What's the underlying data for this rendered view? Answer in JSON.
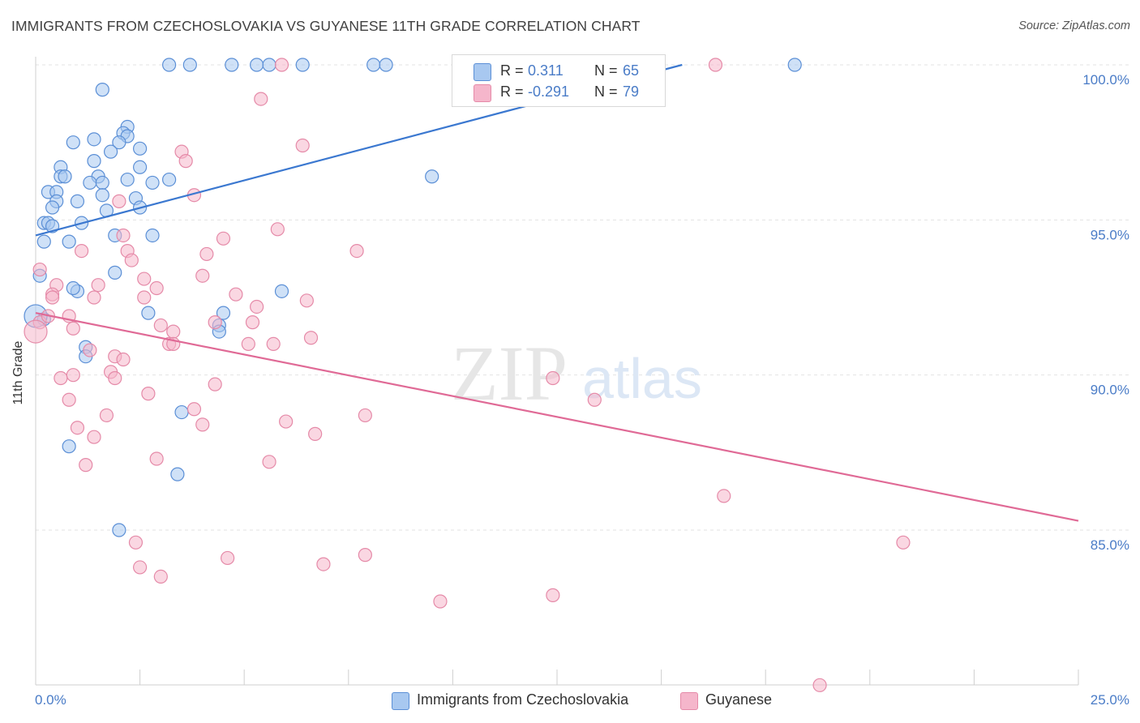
{
  "title": "IMMIGRANTS FROM CZECHOSLOVAKIA VS GUYANESE 11TH GRADE CORRELATION CHART",
  "source": "Source: ZipAtlas.com",
  "watermark": {
    "zip": "ZIP",
    "atlas": "atlas"
  },
  "legend": {
    "rows": [
      {
        "r_label": "R =",
        "r_value": "0.311",
        "n_label": "N =",
        "n_value": "65"
      },
      {
        "r_label": "R =",
        "r_value": "-0.291",
        "n_label": "N =",
        "n_value": "79"
      }
    ]
  },
  "bottom_legend": [
    "Immigrants from Czechoslovakia",
    "Guyanese"
  ],
  "colors": {
    "blue_fill": "#a8c8f0",
    "blue_stroke": "#5b8fd6",
    "blue_line": "#3b78d0",
    "pink_fill": "#f5b6cb",
    "pink_stroke": "#e58aa8",
    "pink_line": "#e06a96",
    "axis_label": "#4a7cc7",
    "grid": "#e3e3e3"
  },
  "chart_data": {
    "type": "scatter",
    "title": "IMMIGRANTS FROM CZECHOSLOVAKIA VS GUYANESE 11TH GRADE CORRELATION CHART",
    "xlabel": "",
    "ylabel": "11th Grade",
    "xlim": [
      0,
      25
    ],
    "ylim": [
      80.0,
      100.8
    ],
    "x_tick_labels": [
      "0.0%",
      "25.0%"
    ],
    "y_ticks": [
      85,
      90,
      95,
      100
    ],
    "y_tick_labels": [
      "85.0%",
      "90.0%",
      "95.0%",
      "100.0%"
    ],
    "grid": true,
    "series": [
      {
        "name": "Immigrants from Czechoslovakia",
        "color": "#a8c8f0",
        "trend": {
          "x": [
            0.0,
            15.5
          ],
          "y": [
            94.5,
            100.0
          ]
        },
        "points": [
          [
            3.2,
            100.0
          ],
          [
            3.7,
            100.0
          ],
          [
            4.7,
            100.0
          ],
          [
            5.3,
            100.0
          ],
          [
            5.6,
            100.0
          ],
          [
            6.4,
            100.0
          ],
          [
            8.1,
            100.0
          ],
          [
            8.4,
            100.0
          ],
          [
            18.2,
            100.0
          ],
          [
            1.6,
            99.2
          ],
          [
            2.2,
            98.0
          ],
          [
            2.1,
            97.8
          ],
          [
            2.2,
            97.7
          ],
          [
            1.4,
            97.6
          ],
          [
            0.9,
            97.5
          ],
          [
            2.0,
            97.5
          ],
          [
            2.5,
            97.3
          ],
          [
            1.8,
            97.2
          ],
          [
            1.4,
            96.9
          ],
          [
            2.5,
            96.7
          ],
          [
            0.6,
            96.7
          ],
          [
            0.6,
            96.4
          ],
          [
            0.7,
            96.4
          ],
          [
            1.5,
            96.4
          ],
          [
            2.2,
            96.3
          ],
          [
            3.2,
            96.3
          ],
          [
            1.3,
            96.2
          ],
          [
            1.6,
            96.2
          ],
          [
            2.8,
            96.2
          ],
          [
            0.3,
            95.9
          ],
          [
            0.5,
            95.9
          ],
          [
            0.5,
            95.6
          ],
          [
            1.0,
            95.6
          ],
          [
            1.6,
            95.8
          ],
          [
            2.4,
            95.7
          ],
          [
            0.4,
            95.4
          ],
          [
            1.7,
            95.3
          ],
          [
            2.5,
            95.4
          ],
          [
            0.2,
            94.9
          ],
          [
            0.3,
            94.9
          ],
          [
            1.1,
            94.9
          ],
          [
            0.4,
            94.8
          ],
          [
            1.9,
            94.5
          ],
          [
            2.8,
            94.5
          ],
          [
            0.2,
            94.3
          ],
          [
            0.8,
            94.3
          ],
          [
            9.5,
            96.4
          ],
          [
            0.1,
            93.2
          ],
          [
            1.9,
            93.3
          ],
          [
            1.0,
            92.7
          ],
          [
            5.9,
            92.7
          ],
          [
            0.9,
            92.8
          ],
          [
            2.7,
            92.0
          ],
          [
            4.5,
            92.0
          ],
          [
            4.4,
            91.6
          ],
          [
            0.2,
            91.8
          ],
          [
            4.4,
            91.4
          ],
          [
            1.2,
            90.9
          ],
          [
            1.2,
            90.6
          ],
          [
            3.5,
            88.8
          ],
          [
            0.8,
            87.7
          ],
          [
            3.4,
            86.8
          ],
          [
            2.0,
            85.0
          ],
          [
            0.0,
            91.9
          ]
        ]
      },
      {
        "name": "Guyanese",
        "color": "#f5b6cb",
        "trend": {
          "x": [
            0.0,
            25.0
          ],
          "y": [
            92.0,
            85.3
          ]
        },
        "points": [
          [
            5.9,
            100.0
          ],
          [
            16.3,
            100.0
          ],
          [
            5.4,
            98.9
          ],
          [
            6.4,
            97.4
          ],
          [
            3.5,
            97.2
          ],
          [
            3.6,
            96.9
          ],
          [
            3.8,
            95.8
          ],
          [
            2.0,
            95.6
          ],
          [
            5.8,
            94.7
          ],
          [
            2.1,
            94.5
          ],
          [
            4.5,
            94.4
          ],
          [
            1.1,
            94.0
          ],
          [
            2.2,
            94.0
          ],
          [
            4.1,
            93.9
          ],
          [
            7.7,
            94.0
          ],
          [
            2.3,
            93.7
          ],
          [
            0.1,
            93.4
          ],
          [
            4.0,
            93.2
          ],
          [
            2.6,
            93.1
          ],
          [
            0.5,
            92.9
          ],
          [
            1.5,
            92.9
          ],
          [
            2.9,
            92.8
          ],
          [
            0.4,
            92.6
          ],
          [
            4.8,
            92.6
          ],
          [
            6.5,
            92.4
          ],
          [
            0.4,
            92.5
          ],
          [
            1.4,
            92.5
          ],
          [
            2.6,
            92.5
          ],
          [
            5.3,
            92.2
          ],
          [
            0.8,
            91.9
          ],
          [
            0.1,
            91.7
          ],
          [
            4.3,
            91.7
          ],
          [
            5.2,
            91.7
          ],
          [
            3.0,
            91.6
          ],
          [
            0.9,
            91.5
          ],
          [
            3.3,
            91.4
          ],
          [
            6.6,
            91.2
          ],
          [
            3.2,
            91.0
          ],
          [
            3.3,
            91.0
          ],
          [
            5.1,
            91.0
          ],
          [
            5.7,
            91.0
          ],
          [
            1.3,
            90.8
          ],
          [
            1.9,
            90.6
          ],
          [
            2.1,
            90.5
          ],
          [
            0.0,
            91.4
          ],
          [
            1.8,
            90.1
          ],
          [
            0.9,
            90.0
          ],
          [
            0.6,
            89.9
          ],
          [
            1.9,
            89.9
          ],
          [
            4.3,
            89.7
          ],
          [
            12.4,
            89.9
          ],
          [
            2.7,
            89.4
          ],
          [
            0.8,
            89.2
          ],
          [
            13.4,
            89.2
          ],
          [
            3.8,
            88.9
          ],
          [
            1.7,
            88.7
          ],
          [
            7.9,
            88.7
          ],
          [
            6.0,
            88.5
          ],
          [
            4.0,
            88.4
          ],
          [
            1.0,
            88.3
          ],
          [
            6.7,
            88.1
          ],
          [
            1.4,
            88.0
          ],
          [
            2.9,
            87.3
          ],
          [
            5.6,
            87.2
          ],
          [
            1.2,
            87.1
          ],
          [
            16.5,
            86.1
          ],
          [
            2.4,
            84.6
          ],
          [
            20.8,
            84.6
          ],
          [
            7.9,
            84.2
          ],
          [
            4.6,
            84.1
          ],
          [
            6.9,
            83.9
          ],
          [
            2.5,
            83.8
          ],
          [
            3.0,
            83.5
          ],
          [
            9.7,
            82.7
          ],
          [
            12.4,
            82.9
          ],
          [
            18.8,
            80.0
          ],
          [
            0.3,
            91.9
          ]
        ]
      }
    ]
  }
}
